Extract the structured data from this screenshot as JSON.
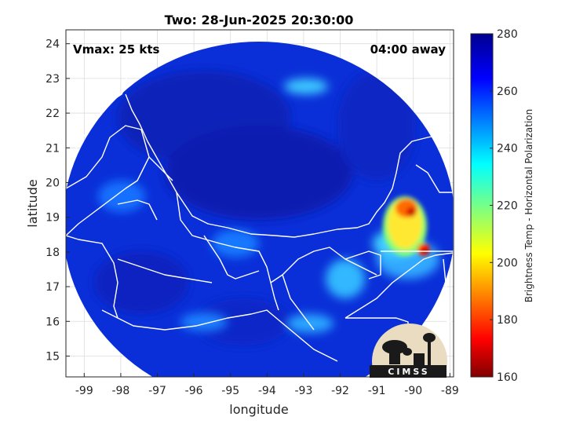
{
  "title": "Two: 28-Jun-2025 20:30:00",
  "overlay": {
    "vmax": "Vmax: 25 kts",
    "away": "04:00 away"
  },
  "axes": {
    "xlabel": "longitude",
    "ylabel": "latitude",
    "xlim": [
      -99.5,
      -88.9
    ],
    "ylim": [
      14.4,
      24.4
    ],
    "xticks": [
      -99,
      -98,
      -97,
      -96,
      -95,
      -94,
      -93,
      -92,
      -91,
      -90,
      -89
    ],
    "yticks": [
      15,
      16,
      17,
      18,
      19,
      20,
      21,
      22,
      23,
      24
    ],
    "xtick_labels": [
      "-99",
      "-98",
      "-97",
      "-96",
      "-95",
      "-94",
      "-93",
      "-92",
      "-91",
      "-90",
      "-89"
    ],
    "ytick_labels": [
      "15",
      "16",
      "17",
      "18",
      "19",
      "20",
      "21",
      "22",
      "23",
      "24"
    ],
    "grid": true
  },
  "colorbar": {
    "label": "Brightness Temp - Horizontal Polarization",
    "range": [
      160,
      280
    ],
    "ticks": [
      160,
      180,
      200,
      220,
      240,
      260,
      280
    ],
    "tick_labels": [
      "160",
      "180",
      "200",
      "220",
      "240",
      "260",
      "280"
    ],
    "colormap": "jet"
  },
  "logo": {
    "text": "CIMSS"
  },
  "colors": {
    "background": "#00008f",
    "coastline": "#ffffff",
    "grid": "#dcdcdc"
  }
}
